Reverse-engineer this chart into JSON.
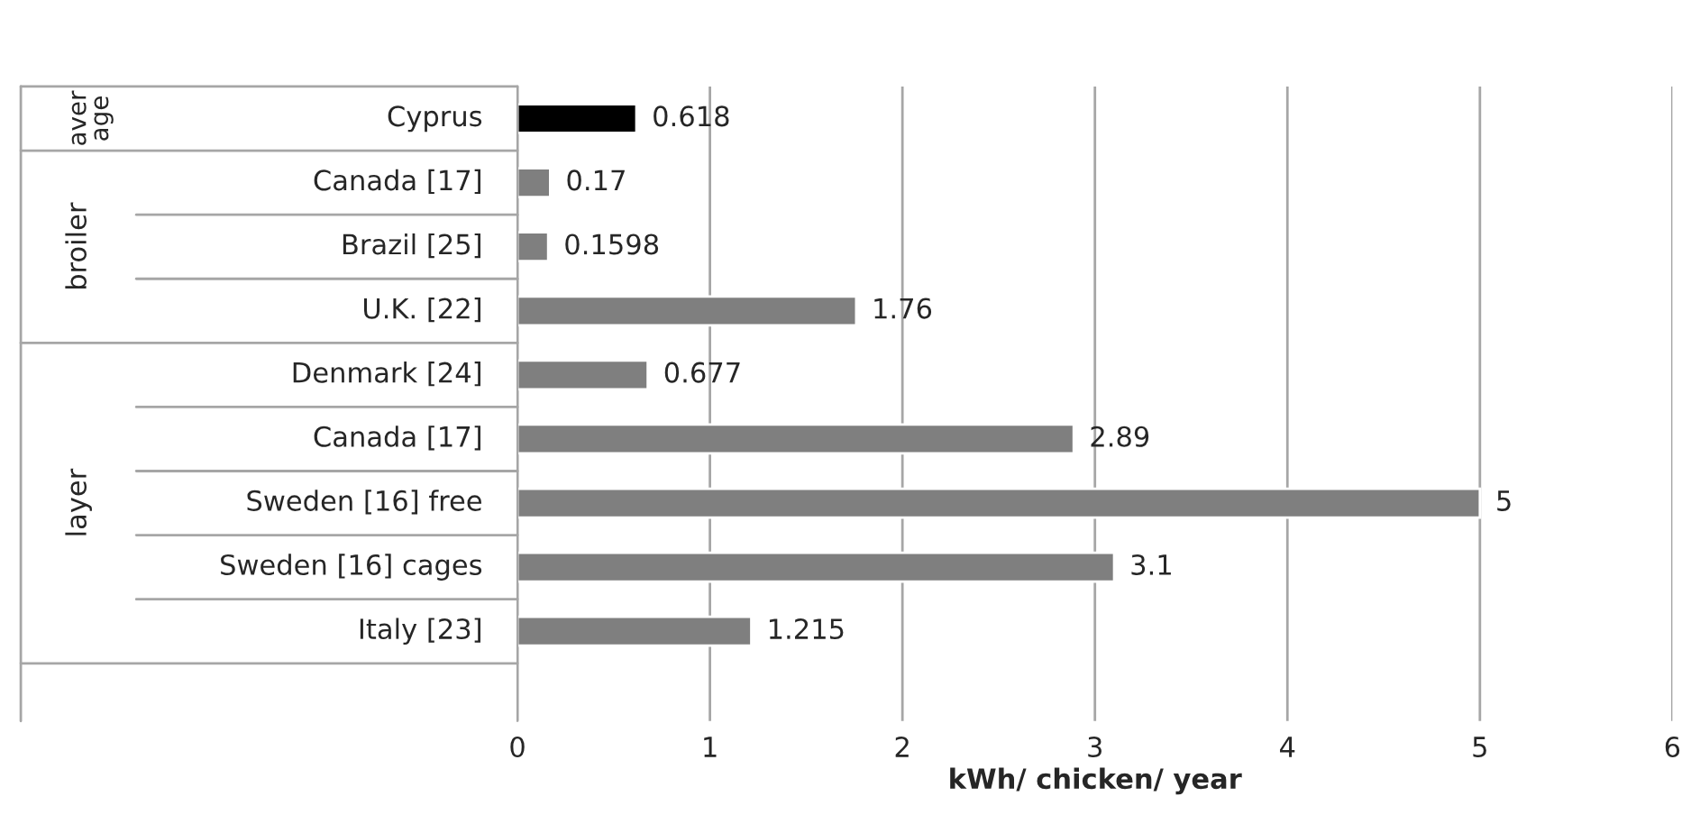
{
  "chart_data": {
    "type": "bar",
    "orientation": "horizontal",
    "xlabel": "kWh/ chicken/ year",
    "categories": [
      "Cyprus",
      "Canada [17]",
      "Brazil [25]",
      "U.K. [22]",
      "Denmark [24]",
      "Canada [17]",
      "Sweden [16] free",
      "Sweden [16] cages",
      "Italy [23]"
    ],
    "values": [
      0.618,
      0.17,
      0.1598,
      1.76,
      0.677,
      2.89,
      5,
      3.1,
      1.215
    ],
    "colors": [
      "#000000",
      "#7f7f7f",
      "#7f7f7f",
      "#7f7f7f",
      "#7f7f7f",
      "#7f7f7f",
      "#7f7f7f",
      "#7f7f7f",
      "#7f7f7f"
    ],
    "data_labels": true,
    "annotations": [
      "aver age",
      "broiler",
      "layer"
    ],
    "xlim": [
      0,
      6
    ],
    "xticks": [
      0,
      1,
      2,
      3,
      4,
      5,
      6
    ],
    "grid": "x"
  }
}
